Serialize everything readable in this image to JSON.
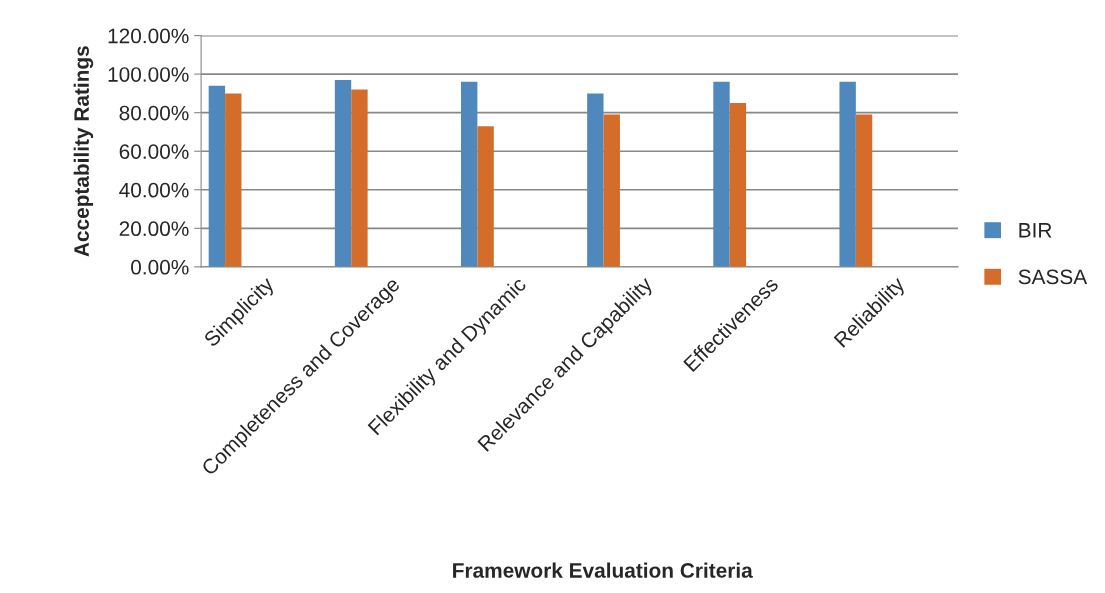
{
  "chart_data": {
    "type": "bar",
    "xlabel": "Framework Evaluation Criteria",
    "ylabel": "Acceptability Ratings",
    "categories": [
      "Simplicity",
      "Completeness and Coverage",
      "Flexibility and Dynamic",
      "Relevance and Capability",
      "Effectiveness",
      "Reliability"
    ],
    "series": [
      {
        "name": "BIR",
        "color": "#4f88bd",
        "values": [
          0.94,
          0.97,
          0.96,
          0.9,
          0.96,
          0.96
        ]
      },
      {
        "name": "SASSA",
        "color": "#d46d2a",
        "values": [
          0.9,
          0.92,
          0.73,
          0.79,
          0.85,
          0.79
        ]
      }
    ],
    "ylim": [
      0,
      1.2
    ],
    "yticks": [
      {
        "value": 0,
        "label": "0.00%"
      },
      {
        "value": 0.2,
        "label": "20.00%"
      },
      {
        "value": 0.4,
        "label": "40.00%"
      },
      {
        "value": 0.6,
        "label": "60.00%"
      },
      {
        "value": 0.8,
        "label": "80.00%"
      },
      {
        "value": 1.0,
        "label": "100.00%"
      },
      {
        "value": 1.2,
        "label": "120.00%"
      }
    ],
    "grid": "y",
    "legend": "right"
  }
}
